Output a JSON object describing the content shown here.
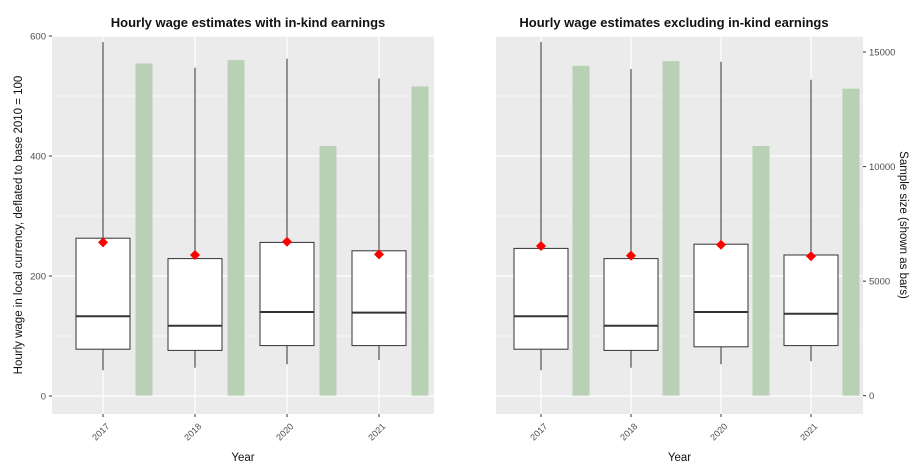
{
  "chart_data": [
    {
      "type": "boxplot",
      "title": "Hourly wage estimates with in-kind earnings",
      "xlabel": "Year",
      "ylabel": "Hourly wage in local currency, deflated to base 2010 = 100",
      "ylim": [
        -30,
        600
      ],
      "y_ticks": [
        "0",
        "200",
        "400",
        "600"
      ],
      "y_tick_values": [
        0,
        200,
        400,
        600
      ],
      "categories": [
        "2017",
        "2018",
        "2020",
        "2021"
      ],
      "boxes": [
        {
          "whisker_low": 43,
          "q1": 78,
          "median": 133,
          "q3": 263,
          "whisker_high": 590,
          "mean": 256
        },
        {
          "whisker_low": 47,
          "q1": 76,
          "median": 117,
          "q3": 229,
          "whisker_high": 547,
          "mean": 235
        },
        {
          "whisker_low": 53,
          "q1": 84,
          "median": 140,
          "q3": 256,
          "whisker_high": 562,
          "mean": 257
        },
        {
          "whisker_low": 60,
          "q1": 84,
          "median": 139,
          "q3": 242,
          "whisker_high": 529,
          "mean": 236
        }
      ],
      "sample_size_bars": [
        14500,
        14650,
        10900,
        13500
      ],
      "secondary_ylim": [
        -800,
        15700
      ],
      "grid": true,
      "colors": {
        "panel": "#ebebeb",
        "grid": "#ffffff",
        "box_fill": "#ffffff",
        "box_line": "#333333",
        "mean_marker": "#ff0000",
        "bar": "#b8d1b4"
      }
    },
    {
      "type": "boxplot",
      "title": "Hourly wage estimates excluding in-kind earnings",
      "xlabel": "Year",
      "ylabel": "",
      "ylim": [
        -30,
        600
      ],
      "categories": [
        "2017",
        "2018",
        "2020",
        "2021"
      ],
      "boxes": [
        {
          "whisker_low": 43,
          "q1": 78,
          "median": 133,
          "q3": 246,
          "whisker_high": 590,
          "mean": 250
        },
        {
          "whisker_low": 47,
          "q1": 76,
          "median": 117,
          "q3": 229,
          "whisker_high": 545,
          "mean": 234
        },
        {
          "whisker_low": 53,
          "q1": 82,
          "median": 140,
          "q3": 253,
          "whisker_high": 557,
          "mean": 252
        },
        {
          "whisker_low": 58,
          "q1": 84,
          "median": 137,
          "q3": 235,
          "whisker_high": 527,
          "mean": 233
        }
      ],
      "sample_size_bars": [
        14400,
        14600,
        10900,
        13400
      ],
      "secondary_ylim": [
        -800,
        15700
      ],
      "secondary_ylabel": "Sample size (shown as bars)",
      "secondary_ticks": [
        "0",
        "5000",
        "10000",
        "15000"
      ],
      "secondary_tick_values": [
        0,
        5000,
        10000,
        15000
      ],
      "grid": true,
      "colors": {
        "panel": "#ebebeb",
        "grid": "#ffffff",
        "box_fill": "#ffffff",
        "box_line": "#333333",
        "mean_marker": "#ff0000",
        "bar": "#b8d1b4"
      }
    }
  ]
}
